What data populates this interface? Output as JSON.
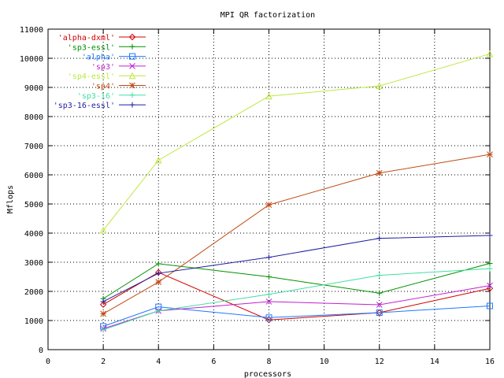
{
  "chart_data": {
    "type": "line",
    "title": "MPI QR factorization",
    "xlabel": "processors",
    "ylabel": "Mflops",
    "xlim": [
      0,
      16
    ],
    "ylim": [
      0,
      11000
    ],
    "xticks": [
      0,
      2,
      4,
      6,
      8,
      10,
      12,
      14,
      16
    ],
    "yticks": [
      0,
      1000,
      2000,
      3000,
      4000,
      5000,
      6000,
      7000,
      8000,
      9000,
      10000,
      11000
    ],
    "grid": true,
    "legend_position": "top-left",
    "x": [
      2,
      4,
      8,
      12,
      16
    ],
    "series": [
      {
        "name": "'alpha-dxml'",
        "color": "#d40000",
        "marker": "diamond",
        "values": [
          1550,
          2650,
          1020,
          1270,
          2100
        ]
      },
      {
        "name": "'sp3-essl'",
        "color": "#009000",
        "marker": "plus",
        "values": [
          1750,
          2950,
          2500,
          1940,
          2960
        ]
      },
      {
        "name": "'alpha'",
        "color": "#1e78ff",
        "marker": "square",
        "values": [
          800,
          1470,
          1100,
          1270,
          1500
        ]
      },
      {
        "name": "'sp3'",
        "color": "#c020d0",
        "marker": "x",
        "values": [
          720,
          1330,
          1650,
          1540,
          2200
        ]
      },
      {
        "name": "'sp4-essl'",
        "color": "#bde840",
        "marker": "triangle",
        "values": [
          4100,
          6500,
          8700,
          9050,
          10150
        ]
      },
      {
        "name": "'sp4'",
        "color": "#c04a14",
        "marker": "star",
        "values": [
          1230,
          2320,
          4970,
          6060,
          6700
        ]
      },
      {
        "name": "'sp3-16'",
        "color": "#40e0a0",
        "marker": "plus",
        "values": [
          680,
          1330,
          1900,
          2550,
          2780
        ]
      },
      {
        "name": "'sp3-16-essl'",
        "color": "#1e1e9e",
        "marker": "plus",
        "values": [
          1650,
          2620,
          3170,
          3820,
          3920
        ]
      }
    ]
  }
}
